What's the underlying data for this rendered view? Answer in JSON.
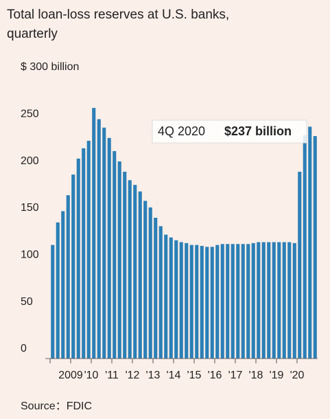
{
  "chart_data": {
    "type": "bar",
    "title": "Total loan-loss reserves at U.S. banks,",
    "subtitle": "quarterly",
    "categories": [
      null,
      null,
      null,
      null,
      "2009",
      null,
      null,
      null,
      "'10",
      null,
      null,
      null,
      "'11",
      null,
      null,
      null,
      "'12",
      null,
      null,
      null,
      "'13",
      null,
      null,
      null,
      "'14",
      null,
      null,
      null,
      "'15",
      null,
      null,
      null,
      "'16",
      null,
      null,
      null,
      "'17",
      null,
      null,
      null,
      "'18",
      null,
      null,
      null,
      "'19",
      null,
      null,
      null,
      "'20",
      null,
      null,
      null
    ],
    "values": [
      121,
      145,
      157,
      174,
      196,
      213,
      224,
      232,
      267,
      255,
      246,
      235,
      221,
      210,
      199,
      190,
      185,
      178,
      168,
      161,
      150,
      141,
      132,
      129,
      126,
      124,
      123,
      121,
      121,
      120,
      119,
      119,
      121,
      122,
      122,
      122,
      122,
      122,
      122,
      123,
      124,
      124,
      124,
      124,
      124,
      124,
      124,
      123,
      199,
      238,
      247,
      237
    ],
    "value_labels": [
      null,
      null,
      null,
      null,
      null,
      null,
      null,
      null,
      null,
      null,
      null,
      null,
      null,
      null,
      null,
      null,
      null,
      null,
      null,
      null,
      null,
      null,
      null,
      null,
      null,
      null,
      null,
      null,
      null,
      null,
      null,
      null,
      null,
      null,
      null,
      null,
      null,
      null,
      null,
      null,
      null,
      null,
      null,
      null,
      null,
      null,
      null,
      null,
      null,
      null,
      null,
      "$237 billion"
    ],
    "annotation": "4Q 2020",
    "color": "#2b7fb6",
    "ylim": [
      0,
      300
    ],
    "yticks": [
      0,
      50,
      100,
      150,
      200,
      {
        "value": 300,
        "label": "$ 300 billion"
      }
    ],
    "ytick_250": 250,
    "source": "Source：FDIC"
  }
}
